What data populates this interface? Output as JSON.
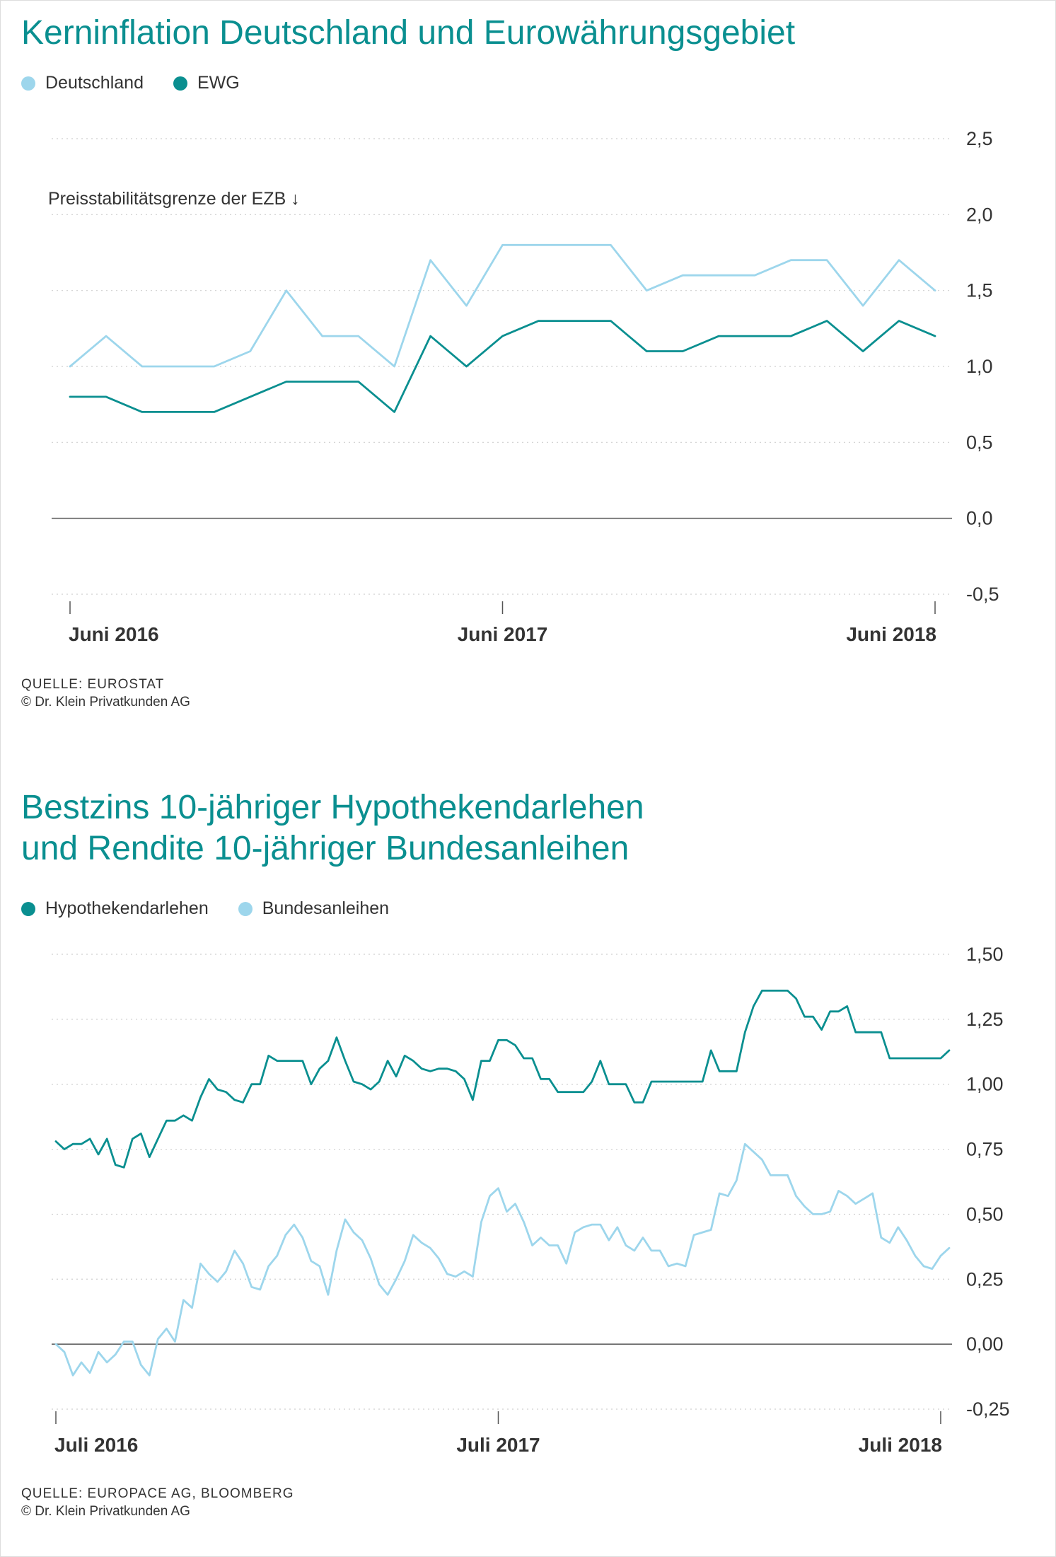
{
  "colors": {
    "title": "#0a8f90",
    "dark_teal": "#0a8f90",
    "light_blue": "#9dd6ec"
  },
  "chart1": {
    "title": "Kerninflation Deutschland und Eurowährungsgebiet",
    "source": "QUELLE: EUROSTAT",
    "copyright": "© Dr. Klein Privatkunden AG",
    "legend": [
      {
        "label": "Deutschland",
        "color": "#9dd6ec"
      },
      {
        "label": "EWG",
        "color": "#0a8f90"
      }
    ],
    "annotation": "Preisstabilitätsgrenze der EZB ↓"
  },
  "chart2": {
    "title_line1": "Bestzins 10-jähriger Hypothekendarlehen",
    "title_line2": "und Rendite 10-jähriger Bundesanleihen",
    "source": "QUELLE: EUROPACE AG, BLOOMBERG",
    "copyright": "© Dr. Klein Privatkunden AG",
    "legend": [
      {
        "label": "Hypothekendarlehen",
        "color": "#0a8f90"
      },
      {
        "label": "Bundesanleihen",
        "color": "#9dd6ec"
      }
    ]
  },
  "chart_data": [
    {
      "type": "line",
      "title": "Kerninflation Deutschland und Eurowährungsgebiet",
      "xlabel": "",
      "ylabel": "",
      "x_ticks": [
        "Juni 2016",
        "Juni 2017",
        "Juni 2018"
      ],
      "x_tick_index": [
        0,
        12,
        24
      ],
      "y_ticks": [
        "-0,5",
        "0,0",
        "0,5",
        "1,0",
        "1,5",
        "2,0",
        "2,5"
      ],
      "y_tick_values": [
        -0.5,
        0,
        0.5,
        1,
        1.5,
        2,
        2.5
      ],
      "ylim": [
        -0.5,
        2.5
      ],
      "grid": true,
      "legend_position": "top-left",
      "series": [
        {
          "name": "Deutschland",
          "color": "#9dd6ec",
          "values": [
            1.0,
            1.2,
            1.0,
            1.0,
            1.0,
            1.1,
            1.5,
            1.2,
            1.2,
            1.0,
            1.7,
            1.4,
            1.8,
            1.8,
            1.8,
            1.8,
            1.5,
            1.6,
            1.6,
            1.6,
            1.7,
            1.7,
            1.4,
            1.7,
            1.5
          ]
        },
        {
          "name": "EWG",
          "color": "#0a8f90",
          "values": [
            0.8,
            0.8,
            0.7,
            0.7,
            0.7,
            0.8,
            0.9,
            0.9,
            0.9,
            0.7,
            1.2,
            1.0,
            1.2,
            1.3,
            1.3,
            1.3,
            1.1,
            1.1,
            1.2,
            1.2,
            1.2,
            1.3,
            1.1,
            1.3,
            1.2
          ]
        }
      ]
    },
    {
      "type": "line",
      "title": "Bestzins 10-jähriger Hypothekendarlehen und Rendite 10-jähriger Bundesanleihen",
      "xlabel": "",
      "ylabel": "",
      "x_ticks": [
        "Juli 2016",
        "Juli 2017",
        "Juli 2018"
      ],
      "x_tick_index": [
        0,
        52,
        104
      ],
      "y_ticks": [
        "-0,25",
        "0,00",
        "0,25",
        "0,50",
        "0,75",
        "1,00",
        "1,25",
        "1,50"
      ],
      "y_tick_values": [
        -0.25,
        0,
        0.25,
        0.5,
        0.75,
        1.0,
        1.25,
        1.5
      ],
      "ylim": [
        -0.25,
        1.5
      ],
      "grid": true,
      "legend_position": "top-left",
      "series": [
        {
          "name": "Hypothekendarlehen",
          "color": "#0a8f90",
          "values": [
            0.78,
            0.75,
            0.77,
            0.77,
            0.79,
            0.73,
            0.79,
            0.69,
            0.68,
            0.79,
            0.81,
            0.72,
            0.79,
            0.86,
            0.86,
            0.88,
            0.86,
            0.95,
            1.02,
            0.98,
            0.97,
            0.94,
            0.93,
            1.0,
            1.0,
            1.11,
            1.09,
            1.09,
            1.09,
            1.09,
            1.0,
            1.06,
            1.09,
            1.18,
            1.09,
            1.01,
            1.0,
            0.98,
            1.01,
            1.09,
            1.03,
            1.11,
            1.09,
            1.06,
            1.05,
            1.06,
            1.06,
            1.05,
            1.02,
            0.94,
            1.09,
            1.09,
            1.17,
            1.17,
            1.15,
            1.1,
            1.1,
            1.02,
            1.02,
            0.97,
            0.97,
            0.97,
            0.97,
            1.01,
            1.09,
            1.0,
            1.0,
            1.0,
            0.93,
            0.93,
            1.01,
            1.01,
            1.01,
            1.01,
            1.01,
            1.01,
            1.01,
            1.13,
            1.05,
            1.05,
            1.05,
            1.2,
            1.3,
            1.36,
            1.36,
            1.36,
            1.36,
            1.33,
            1.26,
            1.26,
            1.21,
            1.28,
            1.28,
            1.3,
            1.2,
            1.2,
            1.2,
            1.2,
            1.1,
            1.1,
            1.1,
            1.1,
            1.1,
            1.1,
            1.1,
            1.13
          ]
        },
        {
          "name": "Bundesanleihen",
          "color": "#9dd6ec",
          "values": [
            0.0,
            -0.03,
            -0.12,
            -0.07,
            -0.11,
            -0.03,
            -0.07,
            -0.04,
            0.01,
            0.01,
            -0.08,
            -0.12,
            0.02,
            0.06,
            0.01,
            0.17,
            0.14,
            0.31,
            0.27,
            0.24,
            0.28,
            0.36,
            0.31,
            0.22,
            0.21,
            0.3,
            0.34,
            0.42,
            0.46,
            0.41,
            0.32,
            0.3,
            0.19,
            0.36,
            0.48,
            0.43,
            0.4,
            0.33,
            0.23,
            0.19,
            0.25,
            0.32,
            0.42,
            0.39,
            0.37,
            0.33,
            0.27,
            0.26,
            0.28,
            0.26,
            0.47,
            0.57,
            0.6,
            0.51,
            0.54,
            0.47,
            0.38,
            0.41,
            0.38,
            0.38,
            0.31,
            0.43,
            0.45,
            0.46,
            0.46,
            0.4,
            0.45,
            0.38,
            0.36,
            0.41,
            0.36,
            0.36,
            0.3,
            0.31,
            0.3,
            0.42,
            0.43,
            0.44,
            0.58,
            0.57,
            0.63,
            0.77,
            0.74,
            0.71,
            0.65,
            0.65,
            0.65,
            0.57,
            0.53,
            0.5,
            0.5,
            0.51,
            0.59,
            0.57,
            0.54,
            0.56,
            0.58,
            0.41,
            0.39,
            0.45,
            0.4,
            0.34,
            0.3,
            0.29,
            0.34,
            0.37
          ]
        }
      ]
    }
  ]
}
